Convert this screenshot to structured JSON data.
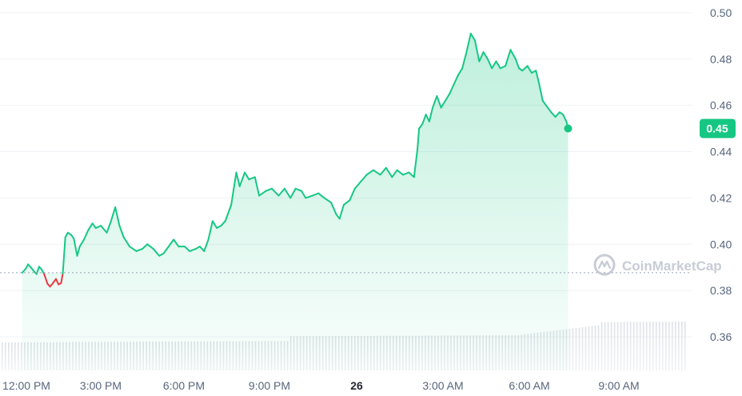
{
  "chart_data": {
    "type": "line",
    "y_axis": {
      "ticks": [
        "0.50",
        "0.48",
        "0.46",
        "0.44",
        "0.42",
        "0.40",
        "0.38",
        "0.36"
      ],
      "ylim": [
        0.3455,
        0.5055
      ],
      "position": "right"
    },
    "x_axis": {
      "ticks": [
        "12:00 PM",
        "3:00 PM",
        "6:00 PM",
        "9:00 PM",
        "26",
        "3:00 AM",
        "6:00 AM",
        "9:00 AM"
      ],
      "bold_ticks": [
        "26"
      ]
    },
    "reference_price": 0.3877,
    "last_price_label": "0.45",
    "watermark": "CoinMarketCap",
    "colors": {
      "up": "#16c784",
      "down": "#ea3943",
      "grid": "#eff2f5",
      "label": "#58667e",
      "volume": "#d8dce3"
    },
    "series": [
      {
        "values": [
          [
            -0.05,
            0.3877
          ],
          [
            -0.01,
            0.3893
          ],
          [
            0.02,
            0.3913
          ],
          [
            0.06,
            0.3897
          ],
          [
            0.09,
            0.3883
          ],
          [
            0.12,
            0.3871
          ],
          [
            0.15,
            0.3903
          ],
          [
            0.18,
            0.3891
          ],
          [
            0.21,
            0.3871
          ],
          [
            0.25,
            0.3829
          ],
          [
            0.28,
            0.3817
          ],
          [
            0.31,
            0.383
          ],
          [
            0.35,
            0.385
          ],
          [
            0.38,
            0.3826
          ],
          [
            0.41,
            0.3832
          ],
          [
            0.43,
            0.3873
          ],
          [
            0.46,
            0.403
          ],
          [
            0.49,
            0.405
          ],
          [
            0.53,
            0.404
          ],
          [
            0.56,
            0.4025
          ],
          [
            0.6,
            0.395
          ],
          [
            0.63,
            0.399
          ],
          [
            0.68,
            0.402
          ],
          [
            0.73,
            0.406
          ],
          [
            0.78,
            0.409
          ],
          [
            0.82,
            0.407
          ],
          [
            0.88,
            0.408
          ],
          [
            0.95,
            0.405
          ],
          [
            1.0,
            0.41
          ],
          [
            1.05,
            0.416
          ],
          [
            1.1,
            0.408
          ],
          [
            1.15,
            0.403
          ],
          [
            1.22,
            0.399
          ],
          [
            1.3,
            0.397
          ],
          [
            1.37,
            0.398
          ],
          [
            1.43,
            0.4
          ],
          [
            1.5,
            0.398
          ],
          [
            1.57,
            0.395
          ],
          [
            1.62,
            0.396
          ],
          [
            1.68,
            0.399
          ],
          [
            1.74,
            0.402
          ],
          [
            1.8,
            0.399
          ],
          [
            1.87,
            0.399
          ],
          [
            1.93,
            0.397
          ],
          [
            2.0,
            0.398
          ],
          [
            2.05,
            0.399
          ],
          [
            2.1,
            0.397
          ],
          [
            2.15,
            0.402
          ],
          [
            2.2,
            0.41
          ],
          [
            2.25,
            0.407
          ],
          [
            2.3,
            0.408
          ],
          [
            2.35,
            0.41
          ],
          [
            2.42,
            0.417
          ],
          [
            2.48,
            0.431
          ],
          [
            2.52,
            0.425
          ],
          [
            2.58,
            0.431
          ],
          [
            2.63,
            0.428
          ],
          [
            2.7,
            0.429
          ],
          [
            2.75,
            0.421
          ],
          [
            2.83,
            0.423
          ],
          [
            2.9,
            0.424
          ],
          [
            2.98,
            0.421
          ],
          [
            3.05,
            0.424
          ],
          [
            3.12,
            0.42
          ],
          [
            3.18,
            0.424
          ],
          [
            3.25,
            0.423
          ],
          [
            3.3,
            0.42
          ],
          [
            3.38,
            0.421
          ],
          [
            3.45,
            0.422
          ],
          [
            3.52,
            0.42
          ],
          [
            3.6,
            0.418
          ],
          [
            3.66,
            0.413
          ],
          [
            3.7,
            0.411
          ],
          [
            3.75,
            0.417
          ],
          [
            3.82,
            0.419
          ],
          [
            3.88,
            0.424
          ],
          [
            3.95,
            0.427
          ],
          [
            4.02,
            0.43
          ],
          [
            4.1,
            0.432
          ],
          [
            4.18,
            0.43
          ],
          [
            4.25,
            0.433
          ],
          [
            4.32,
            0.429
          ],
          [
            4.38,
            0.432
          ],
          [
            4.45,
            0.43
          ],
          [
            4.52,
            0.431
          ],
          [
            4.58,
            0.429
          ],
          [
            4.62,
            0.441
          ],
          [
            4.64,
            0.45
          ],
          [
            4.68,
            0.452
          ],
          [
            4.72,
            0.456
          ],
          [
            4.76,
            0.453
          ],
          [
            4.8,
            0.459
          ],
          [
            4.85,
            0.464
          ],
          [
            4.9,
            0.459
          ],
          [
            4.95,
            0.462
          ],
          [
            5.0,
            0.465
          ],
          [
            5.05,
            0.469
          ],
          [
            5.1,
            0.473
          ],
          [
            5.15,
            0.476
          ],
          [
            5.2,
            0.483
          ],
          [
            5.25,
            0.491
          ],
          [
            5.3,
            0.488
          ],
          [
            5.35,
            0.479
          ],
          [
            5.4,
            0.483
          ],
          [
            5.45,
            0.48
          ],
          [
            5.5,
            0.476
          ],
          [
            5.55,
            0.479
          ],
          [
            5.6,
            0.476
          ],
          [
            5.66,
            0.477
          ],
          [
            5.72,
            0.484
          ],
          [
            5.78,
            0.48
          ],
          [
            5.82,
            0.476
          ],
          [
            5.86,
            0.475
          ],
          [
            5.92,
            0.477
          ],
          [
            5.97,
            0.474
          ],
          [
            6.02,
            0.475
          ],
          [
            6.06,
            0.469
          ],
          [
            6.1,
            0.462
          ],
          [
            6.14,
            0.46
          ],
          [
            6.2,
            0.457
          ],
          [
            6.25,
            0.455
          ],
          [
            6.3,
            0.457
          ],
          [
            6.34,
            0.456
          ],
          [
            6.38,
            0.453
          ],
          [
            6.4,
            0.45
          ]
        ]
      }
    ],
    "volume_bars": 214
  }
}
